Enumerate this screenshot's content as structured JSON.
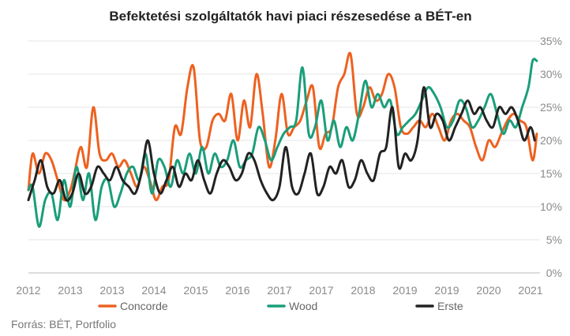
{
  "chart_data": {
    "type": "line",
    "title": "Befektetési szolgáltatók havi piaci részesedése a BÉT-en",
    "source": "Forrás: BÉT, Portfolio",
    "xlabel": "",
    "ylabel": "",
    "x_ticks": [
      "2012",
      "2013",
      "2013",
      "2014",
      "2015",
      "2016",
      "2017",
      "2017",
      "2018",
      "2019",
      "2019",
      "2020",
      "2021"
    ],
    "x_range": [
      0,
      12
    ],
    "ylim": [
      0,
      35
    ],
    "y_ticks": [
      0,
      5,
      10,
      15,
      20,
      25,
      30,
      35
    ],
    "y_tick_suffix": "%",
    "y_axis_position": "right",
    "grid": "horizontal",
    "legend_position": "bottom",
    "colors": {
      "Concorde": "#ee6120",
      "Wood": "#1a9e7a",
      "Erste": "#222222"
    },
    "series": [
      {
        "name": "Concorde",
        "x": [
          0.0,
          0.1,
          0.25,
          0.4,
          0.55,
          0.7,
          0.85,
          1.0,
          1.1,
          1.25,
          1.4,
          1.55,
          1.7,
          1.85,
          2.0,
          2.15,
          2.3,
          2.45,
          2.6,
          2.75,
          2.9,
          3.05,
          3.2,
          3.35,
          3.5,
          3.65,
          3.8,
          3.95,
          4.1,
          4.25,
          4.4,
          4.55,
          4.7,
          4.85,
          5.0,
          5.15,
          5.3,
          5.45,
          5.6,
          5.75,
          5.9,
          6.05,
          6.2,
          6.35,
          6.5,
          6.65,
          6.8,
          6.95,
          7.1,
          7.25,
          7.4,
          7.55,
          7.7,
          7.85,
          8.0,
          8.15,
          8.3,
          8.45,
          8.6,
          8.75,
          8.9,
          9.05,
          9.2,
          9.35,
          9.5,
          9.65,
          9.8,
          9.95,
          10.1,
          10.25,
          10.4,
          10.55,
          10.7,
          10.85,
          11.0,
          11.15,
          11.3,
          11.45,
          11.6,
          11.75,
          11.9,
          12.05,
          12.15
        ],
        "values": [
          12.5,
          18,
          15,
          18,
          17,
          14,
          11,
          12.5,
          15,
          19,
          16,
          25,
          18,
          17,
          18,
          16,
          17,
          15,
          13,
          16,
          14,
          11,
          13,
          14,
          22,
          21,
          28,
          31,
          20,
          19,
          23,
          24,
          23,
          27,
          20,
          26,
          22,
          30,
          24,
          16,
          20,
          27,
          21,
          22,
          23,
          26,
          28,
          19,
          21,
          22,
          28,
          30,
          33,
          24,
          25,
          28,
          26,
          27,
          30,
          28,
          22,
          21,
          22,
          23,
          22,
          24,
          22,
          20,
          23,
          24,
          23,
          22,
          19,
          17,
          20,
          19,
          21,
          23,
          24,
          23,
          22,
          17,
          21
        ]
      },
      {
        "name": "Wood",
        "x": [
          0.0,
          0.1,
          0.25,
          0.4,
          0.55,
          0.7,
          0.85,
          1.0,
          1.15,
          1.3,
          1.45,
          1.6,
          1.75,
          1.9,
          2.05,
          2.2,
          2.35,
          2.5,
          2.65,
          2.8,
          2.95,
          3.1,
          3.25,
          3.4,
          3.55,
          3.7,
          3.85,
          4.0,
          4.15,
          4.3,
          4.45,
          4.6,
          4.75,
          4.9,
          5.05,
          5.2,
          5.35,
          5.5,
          5.65,
          5.8,
          5.95,
          6.1,
          6.25,
          6.4,
          6.55,
          6.7,
          6.85,
          7.0,
          7.15,
          7.3,
          7.45,
          7.6,
          7.75,
          7.9,
          8.05,
          8.2,
          8.35,
          8.5,
          8.65,
          8.8,
          8.95,
          9.1,
          9.25,
          9.4,
          9.55,
          9.7,
          9.85,
          10.0,
          10.15,
          10.3,
          10.45,
          10.6,
          10.75,
          10.9,
          11.05,
          11.2,
          11.35,
          11.5,
          11.65,
          11.8,
          11.95,
          12.05,
          12.15
        ],
        "values": [
          12.5,
          13,
          7,
          11,
          12,
          8,
          14,
          10,
          16,
          11,
          15,
          8,
          13,
          14,
          10,
          12,
          15,
          16,
          14,
          18,
          12,
          17,
          16,
          13,
          17,
          15,
          18,
          15,
          19,
          15,
          18,
          16,
          17,
          20,
          16,
          17,
          18,
          22,
          20,
          17,
          19,
          21,
          22,
          23,
          31,
          21,
          22,
          26,
          20,
          23,
          19,
          22,
          20,
          24,
          29,
          25,
          27,
          25,
          26,
          21,
          22,
          23,
          24,
          26,
          28,
          27,
          25,
          22,
          23,
          26,
          25,
          22,
          23,
          25,
          27,
          24,
          21,
          23,
          22,
          25,
          28,
          32,
          32
        ]
      },
      {
        "name": "Erste",
        "x": [
          0.0,
          0.15,
          0.3,
          0.45,
          0.6,
          0.75,
          0.9,
          1.05,
          1.2,
          1.35,
          1.5,
          1.65,
          1.8,
          1.95,
          2.1,
          2.25,
          2.4,
          2.55,
          2.7,
          2.85,
          3.0,
          3.15,
          3.3,
          3.45,
          3.6,
          3.75,
          3.9,
          4.05,
          4.2,
          4.35,
          4.5,
          4.65,
          4.8,
          4.95,
          5.1,
          5.25,
          5.4,
          5.55,
          5.7,
          5.85,
          6.0,
          6.15,
          6.3,
          6.45,
          6.6,
          6.75,
          6.9,
          7.05,
          7.2,
          7.35,
          7.5,
          7.65,
          7.8,
          7.95,
          8.1,
          8.25,
          8.4,
          8.55,
          8.7,
          8.85,
          9.0,
          9.15,
          9.3,
          9.45,
          9.6,
          9.75,
          9.9,
          10.05,
          10.2,
          10.35,
          10.5,
          10.65,
          10.8,
          10.95,
          11.1,
          11.25,
          11.4,
          11.55,
          11.7,
          11.85,
          12.0,
          12.1
        ],
        "values": [
          11,
          14,
          17,
          13,
          12,
          14,
          11,
          12,
          15,
          12,
          13,
          16,
          15,
          14,
          16,
          14,
          13,
          12,
          15,
          20,
          15,
          12,
          14,
          16,
          13,
          15,
          14,
          17,
          14,
          12,
          15,
          17,
          16,
          14,
          15,
          18,
          17,
          14,
          12,
          11,
          13,
          19,
          13,
          12,
          15,
          18,
          12,
          13,
          16,
          15,
          17,
          13,
          14,
          17,
          15,
          14,
          18,
          19,
          25,
          16,
          18,
          17,
          20,
          28,
          22,
          24,
          23,
          20,
          22,
          24,
          26,
          24,
          25,
          23,
          22,
          25,
          24,
          25,
          23,
          20,
          22,
          20
        ]
      }
    ]
  }
}
